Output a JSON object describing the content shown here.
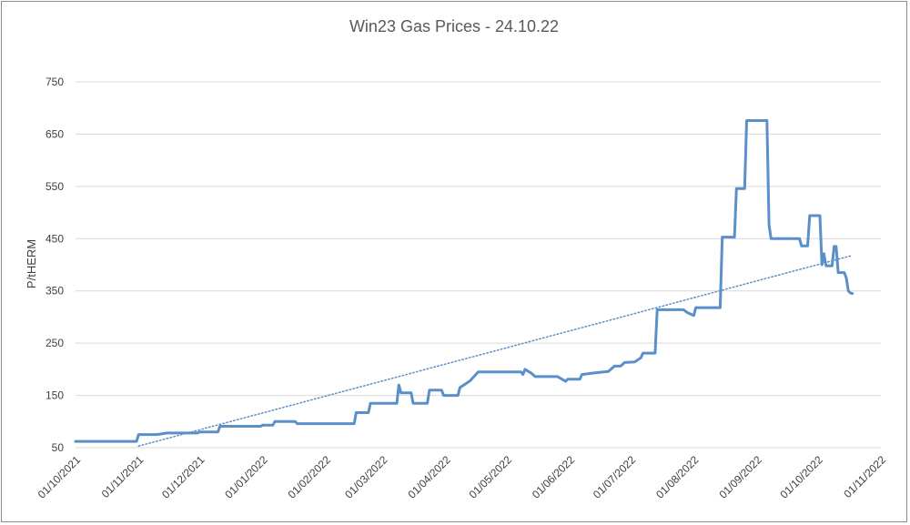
{
  "chart_data": {
    "type": "line",
    "title": "Win23 Gas Prices - 24.10.22",
    "ylabel": "P/tHERM",
    "xlabel": "",
    "ylim": [
      50,
      750
    ],
    "yticks": [
      50,
      150,
      250,
      350,
      450,
      550,
      650,
      750
    ],
    "xticks": [
      "01/10/2021",
      "01/11/2021",
      "01/12/2021",
      "01/01/2022",
      "01/02/2022",
      "01/03/2022",
      "01/04/2022",
      "01/05/2022",
      "01/06/2022",
      "01/07/2022",
      "01/08/2022",
      "01/09/2022",
      "01/10/2022",
      "01/11/2022"
    ],
    "xlim": [
      "2021-10-01",
      "2022-11-01"
    ],
    "grid": true,
    "legend": "none",
    "colors": {
      "series": "#5b8fc9",
      "trend": "#5b8fc9",
      "grid": "#d9d9d9",
      "text": "#404040",
      "title": "#595959"
    },
    "series": [
      {
        "values": [
          [
            "2021-10-01",
            62
          ],
          [
            "2021-10-31",
            62
          ],
          [
            "2021-11-01",
            75
          ],
          [
            "2021-11-10",
            75
          ],
          [
            "2021-11-15",
            78
          ],
          [
            "2021-11-30",
            78
          ],
          [
            "2021-12-01",
            80
          ],
          [
            "2021-12-10",
            80
          ],
          [
            "2021-12-11",
            91
          ],
          [
            "2021-12-31",
            91
          ],
          [
            "2022-01-01",
            93
          ],
          [
            "2022-01-06",
            93
          ],
          [
            "2022-01-07",
            100
          ],
          [
            "2022-01-17",
            100
          ],
          [
            "2022-01-18",
            96
          ],
          [
            "2022-02-15",
            96
          ],
          [
            "2022-02-16",
            117
          ],
          [
            "2022-02-22",
            117
          ],
          [
            "2022-02-23",
            135
          ],
          [
            "2022-03-08",
            135
          ],
          [
            "2022-03-09",
            170
          ],
          [
            "2022-03-10",
            155
          ],
          [
            "2022-03-15",
            155
          ],
          [
            "2022-03-16",
            135
          ],
          [
            "2022-03-23",
            135
          ],
          [
            "2022-03-24",
            160
          ],
          [
            "2022-03-30",
            160
          ],
          [
            "2022-03-31",
            150
          ],
          [
            "2022-04-07",
            150
          ],
          [
            "2022-04-08",
            165
          ],
          [
            "2022-04-13",
            178
          ],
          [
            "2022-04-17",
            195
          ],
          [
            "2022-05-08",
            195
          ],
          [
            "2022-05-09",
            190
          ],
          [
            "2022-05-10",
            200
          ],
          [
            "2022-05-13",
            193
          ],
          [
            "2022-05-15",
            186
          ],
          [
            "2022-05-26",
            186
          ],
          [
            "2022-05-30",
            177
          ],
          [
            "2022-05-31",
            181
          ],
          [
            "2022-06-06",
            181
          ],
          [
            "2022-06-07",
            190
          ],
          [
            "2022-06-13",
            193
          ],
          [
            "2022-06-20",
            196
          ],
          [
            "2022-06-23",
            206
          ],
          [
            "2022-06-26",
            206
          ],
          [
            "2022-06-28",
            213
          ],
          [
            "2022-07-03",
            214
          ],
          [
            "2022-07-06",
            222
          ],
          [
            "2022-07-07",
            231
          ],
          [
            "2022-07-13",
            231
          ],
          [
            "2022-07-14",
            314
          ],
          [
            "2022-07-27",
            314
          ],
          [
            "2022-07-29",
            308
          ],
          [
            "2022-08-01",
            303
          ],
          [
            "2022-08-02",
            318
          ],
          [
            "2022-08-14",
            318
          ],
          [
            "2022-08-15",
            453
          ],
          [
            "2022-08-21",
            453
          ],
          [
            "2022-08-22",
            546
          ],
          [
            "2022-08-26",
            546
          ],
          [
            "2022-08-27",
            676
          ],
          [
            "2022-09-06",
            676
          ],
          [
            "2022-09-07",
            476
          ],
          [
            "2022-09-08",
            450
          ],
          [
            "2022-09-22",
            450
          ],
          [
            "2022-09-23",
            436
          ],
          [
            "2022-09-26",
            436
          ],
          [
            "2022-09-27",
            494
          ],
          [
            "2022-10-02",
            494
          ],
          [
            "2022-10-03",
            400
          ],
          [
            "2022-10-04",
            421
          ],
          [
            "2022-10-05",
            398
          ],
          [
            "2022-10-08",
            398
          ],
          [
            "2022-10-09",
            435
          ],
          [
            "2022-10-10",
            435
          ],
          [
            "2022-10-11",
            385
          ],
          [
            "2022-10-14",
            385
          ],
          [
            "2022-10-15",
            375
          ],
          [
            "2022-10-16",
            350
          ],
          [
            "2022-10-17",
            346
          ],
          [
            "2022-10-18",
            345
          ]
        ]
      }
    ],
    "trendline": {
      "style": "dotted",
      "start": [
        "2021-11-01",
        53
      ],
      "end": [
        "2022-10-18",
        418
      ]
    }
  }
}
